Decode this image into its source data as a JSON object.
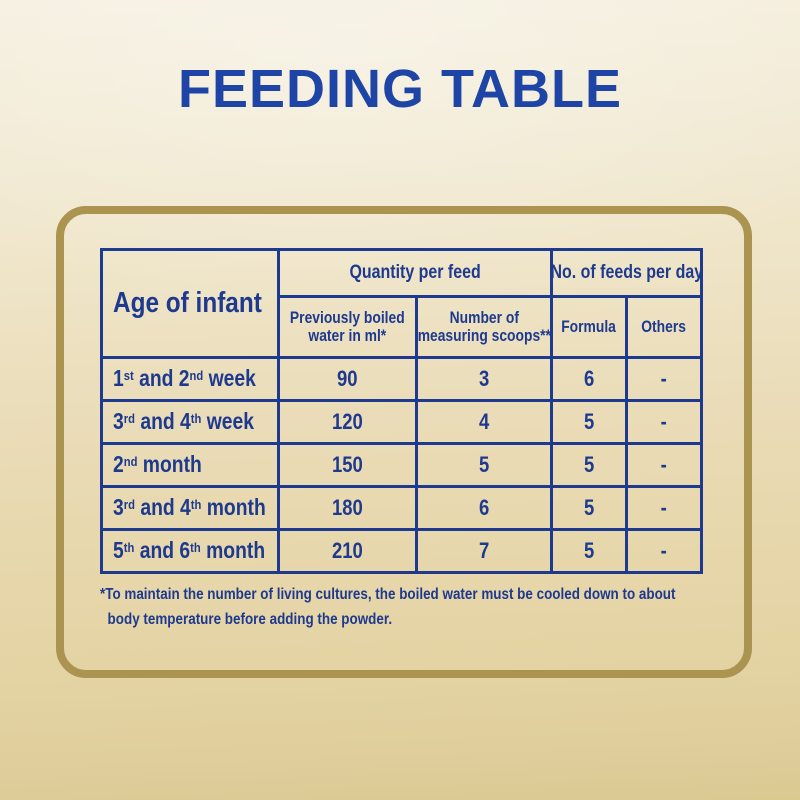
{
  "window": {
    "title": "FEEDING TABLE"
  },
  "colors": {
    "title_blue": "#1e45a5",
    "table_blue": "#1e3a8e",
    "gold_border": "#ab9350",
    "background_top": "#f5efdf",
    "background_bottom": "#dbc992"
  },
  "table": {
    "headers": {
      "age": "Age of infant",
      "quantity_group": "Quantity per feed",
      "feeds_group": "No. of feeds per day",
      "water_lines": [
        "Previously boiled",
        "water in ml*"
      ],
      "scoops_lines": [
        "Number of",
        "measuring scoops**"
      ],
      "formula": "Formula",
      "others": "Others"
    },
    "rows": [
      {
        "age_parts": [
          {
            "t": "1"
          },
          {
            "t": "st",
            "sup": true
          },
          {
            "t": " and 2"
          },
          {
            "t": "nd",
            "sup": true
          },
          {
            "t": " week"
          }
        ],
        "water": "90",
        "scoops": "3",
        "formula": "6",
        "others": "-"
      },
      {
        "age_parts": [
          {
            "t": "3"
          },
          {
            "t": "rd",
            "sup": true
          },
          {
            "t": " and 4"
          },
          {
            "t": "th",
            "sup": true
          },
          {
            "t": " week"
          }
        ],
        "water": "120",
        "scoops": "4",
        "formula": "5",
        "others": "-"
      },
      {
        "age_parts": [
          {
            "t": "2"
          },
          {
            "t": "nd",
            "sup": true
          },
          {
            "t": " month"
          }
        ],
        "water": "150",
        "scoops": "5",
        "formula": "5",
        "others": "-"
      },
      {
        "age_parts": [
          {
            "t": "3"
          },
          {
            "t": "rd",
            "sup": true
          },
          {
            "t": " and 4"
          },
          {
            "t": "th",
            "sup": true
          },
          {
            "t": " month"
          }
        ],
        "water": "180",
        "scoops": "6",
        "formula": "5",
        "others": "-"
      },
      {
        "age_parts": [
          {
            "t": "5"
          },
          {
            "t": "th",
            "sup": true
          },
          {
            "t": " and 6"
          },
          {
            "t": "th",
            "sup": true
          },
          {
            "t": " month"
          }
        ],
        "water": "210",
        "scoops": "7",
        "formula": "5",
        "others": "-"
      }
    ]
  },
  "footnote": {
    "lines": [
      "*To maintain the number of living cultures, the boiled water must be cooled down to about",
      "body temperature before adding the powder."
    ]
  }
}
